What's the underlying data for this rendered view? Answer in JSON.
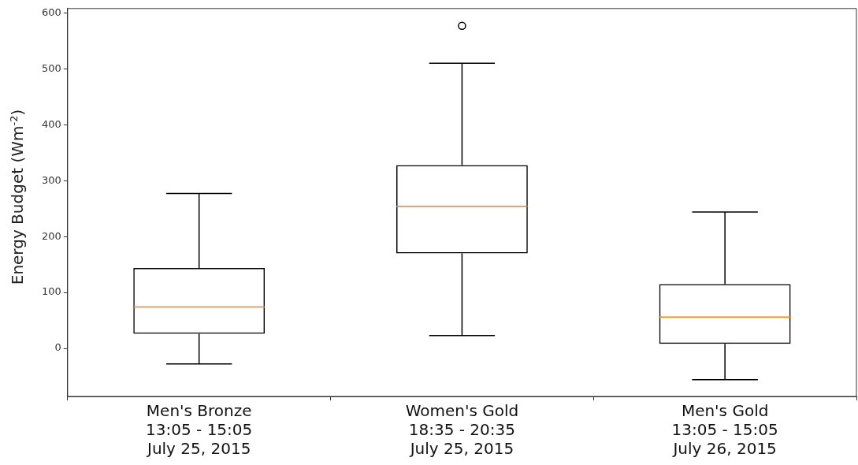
{
  "chart_data": {
    "type": "box",
    "ylabel": "Energy Budget (Wm$^{-2}$)",
    "categories": [
      "Men's Bronze\n13:05 - 15:05\nJuly 25, 2015",
      "Women's Gold\n18:35 - 20:35\nJuly 25, 2015",
      "Men's Gold\n13:05 - 15:05\nJuly 26, 2015"
    ],
    "color": "#000000",
    "boxes": [
      {
        "low": -28,
        "q1": 26,
        "median": 74,
        "q3": 144,
        "high": 277
      },
      {
        "low": 23,
        "q1": 170,
        "median": 254,
        "q3": 328,
        "high": 510,
        "outliers": [
          577
        ]
      },
      {
        "low": -56,
        "q1": 8,
        "median": 56,
        "q3": 115,
        "high": 244
      }
    ],
    "ylim": [
      -86,
      608
    ],
    "yticks": [
      0,
      100,
      200,
      300,
      400,
      500,
      600
    ],
    "grid": false,
    "legend": false
  }
}
